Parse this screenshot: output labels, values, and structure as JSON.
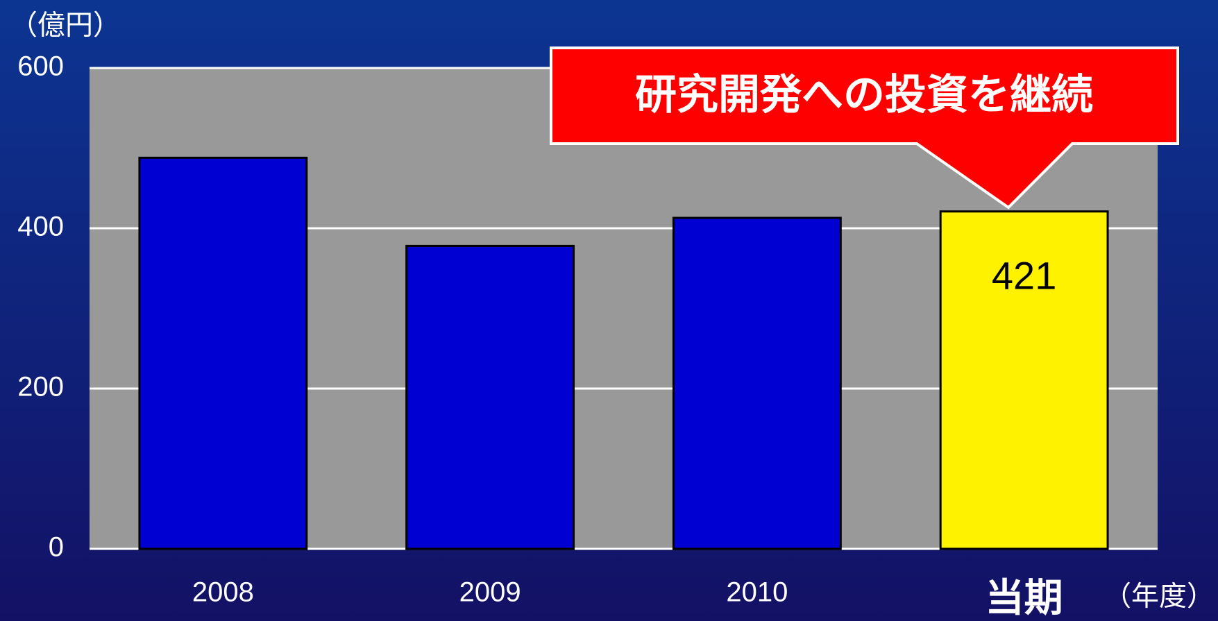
{
  "chart_data": {
    "type": "bar",
    "unit_label": "（億円）",
    "x_unit_label": "（年度）",
    "annotation": "研究開発への投資を継続",
    "categories": [
      "2008",
      "2009",
      "2010",
      "当期"
    ],
    "values": [
      488,
      378,
      413,
      421
    ],
    "colors": [
      "#0000d2",
      "#0000d2",
      "#0000d2",
      "#fff200"
    ],
    "ylim": [
      0,
      600
    ],
    "yticks": [
      0,
      200,
      400,
      600
    ],
    "grid": true
  }
}
